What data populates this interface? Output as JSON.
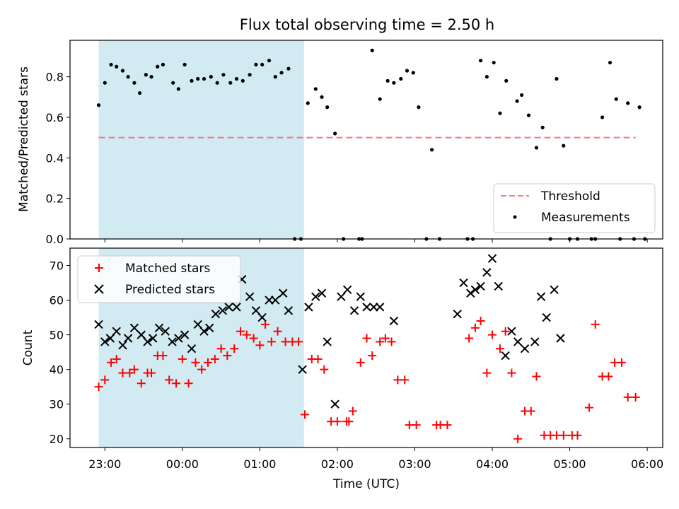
{
  "chart_data": {
    "title": "Flux total observing time = 2.50 h",
    "xlabel": "Time (UTC)",
    "x_ticks": [
      "23:00",
      "00:00",
      "01:00",
      "02:00",
      "03:00",
      "04:00",
      "05:00",
      "06:00"
    ],
    "x_range_hours": [
      22.55,
      30.2
    ],
    "shaded_interval_hours": [
      22.92,
      25.57
    ],
    "shade_color": "#add8e6",
    "panels": [
      {
        "type": "scatter",
        "ylabel": "Matched/Predicted stars",
        "ylim": [
          0,
          0.98
        ],
        "y_ticks": [
          0.0,
          0.2,
          0.4,
          0.6,
          0.8
        ],
        "y_tick_labels": [
          "0.0",
          "0.2",
          "0.4",
          "0.6",
          "0.8"
        ],
        "legend": {
          "position": "lower right",
          "entries": [
            "Threshold",
            "Measurements"
          ]
        },
        "threshold": {
          "name": "Threshold",
          "value": 0.5,
          "x_range": [
            22.92,
            29.85
          ],
          "color": "#f08080"
        },
        "series": [
          {
            "name": "Measurements",
            "marker": "dot",
            "color": "#000000",
            "points": [
              [
                22.92,
                0.66
              ],
              [
                23.0,
                0.77
              ],
              [
                23.08,
                0.86
              ],
              [
                23.15,
                0.85
              ],
              [
                23.23,
                0.83
              ],
              [
                23.3,
                0.8
              ],
              [
                23.38,
                0.77
              ],
              [
                23.45,
                0.72
              ],
              [
                23.53,
                0.81
              ],
              [
                23.6,
                0.8
              ],
              [
                23.68,
                0.85
              ],
              [
                23.75,
                0.86
              ],
              [
                23.88,
                0.77
              ],
              [
                23.95,
                0.74
              ],
              [
                24.03,
                0.86
              ],
              [
                24.12,
                0.78
              ],
              [
                24.2,
                0.79
              ],
              [
                24.28,
                0.79
              ],
              [
                24.37,
                0.8
              ],
              [
                24.45,
                0.77
              ],
              [
                24.53,
                0.81
              ],
              [
                24.62,
                0.77
              ],
              [
                24.7,
                0.79
              ],
              [
                24.78,
                0.78
              ],
              [
                24.87,
                0.81
              ],
              [
                24.95,
                0.86
              ],
              [
                25.03,
                0.86
              ],
              [
                25.12,
                0.88
              ],
              [
                25.2,
                0.8
              ],
              [
                25.28,
                0.82
              ],
              [
                25.37,
                0.84
              ],
              [
                25.45,
                0.0
              ],
              [
                25.53,
                0.0
              ],
              [
                25.62,
                0.67
              ],
              [
                25.72,
                0.74
              ],
              [
                25.8,
                0.7
              ],
              [
                25.87,
                0.65
              ],
              [
                25.97,
                0.52
              ],
              [
                26.08,
                0.0
              ],
              [
                26.28,
                0.0
              ],
              [
                26.32,
                0.0
              ],
              [
                26.45,
                0.93
              ],
              [
                26.55,
                0.69
              ],
              [
                26.65,
                0.78
              ],
              [
                26.73,
                0.77
              ],
              [
                26.82,
                0.79
              ],
              [
                26.9,
                0.83
              ],
              [
                26.98,
                0.82
              ],
              [
                27.05,
                0.65
              ],
              [
                27.15,
                0.0
              ],
              [
                27.22,
                0.44
              ],
              [
                27.32,
                0.0
              ],
              [
                27.68,
                0.0
              ],
              [
                27.75,
                0.0
              ],
              [
                27.85,
                0.88
              ],
              [
                27.93,
                0.8
              ],
              [
                28.02,
                0.87
              ],
              [
                28.1,
                0.62
              ],
              [
                28.18,
                0.78
              ],
              [
                28.32,
                0.68
              ],
              [
                28.38,
                0.71
              ],
              [
                28.47,
                0.61
              ],
              [
                28.57,
                0.45
              ],
              [
                28.65,
                0.55
              ],
              [
                28.75,
                0.0
              ],
              [
                28.83,
                0.79
              ],
              [
                28.92,
                0.46
              ],
              [
                29.0,
                0.0
              ],
              [
                29.1,
                0.0
              ],
              [
                29.28,
                0.0
              ],
              [
                29.33,
                0.0
              ],
              [
                29.42,
                0.6
              ],
              [
                29.52,
                0.87
              ],
              [
                29.6,
                0.69
              ],
              [
                29.65,
                0.0
              ],
              [
                29.75,
                0.67
              ],
              [
                29.83,
                0.0
              ],
              [
                29.9,
                0.65
              ],
              [
                29.97,
                0.0
              ]
            ]
          }
        ]
      },
      {
        "type": "scatter",
        "ylabel": "Count",
        "ylim": [
          17.5,
          75
        ],
        "y_ticks": [
          20,
          30,
          40,
          50,
          60,
          70
        ],
        "y_tick_labels": [
          "20",
          "30",
          "40",
          "50",
          "60",
          "70"
        ],
        "legend": {
          "position": "upper left",
          "entries": [
            "Matched stars",
            "Predicted stars"
          ]
        },
        "series": [
          {
            "name": "Matched stars",
            "marker": "plus",
            "color": "#ff0000",
            "points": [
              [
                22.92,
                35
              ],
              [
                23.0,
                37
              ],
              [
                23.08,
                42
              ],
              [
                23.15,
                43
              ],
              [
                23.23,
                39
              ],
              [
                23.32,
                39
              ],
              [
                23.38,
                40
              ],
              [
                23.47,
                36
              ],
              [
                23.55,
                39
              ],
              [
                23.6,
                39
              ],
              [
                23.68,
                44
              ],
              [
                23.75,
                44
              ],
              [
                23.83,
                37
              ],
              [
                23.92,
                36
              ],
              [
                24.0,
                43
              ],
              [
                24.08,
                36
              ],
              [
                24.17,
                42
              ],
              [
                24.25,
                40
              ],
              [
                24.33,
                42
              ],
              [
                24.42,
                43
              ],
              [
                24.5,
                46
              ],
              [
                24.58,
                44
              ],
              [
                24.67,
                46
              ],
              [
                24.75,
                51
              ],
              [
                24.83,
                50
              ],
              [
                24.92,
                49
              ],
              [
                25.0,
                47
              ],
              [
                25.07,
                53
              ],
              [
                25.15,
                48
              ],
              [
                25.23,
                51
              ],
              [
                25.33,
                48
              ],
              [
                25.42,
                48
              ],
              [
                25.5,
                48
              ],
              [
                25.58,
                27
              ],
              [
                25.67,
                43
              ],
              [
                25.75,
                43
              ],
              [
                25.83,
                40
              ],
              [
                25.92,
                25
              ],
              [
                26.0,
                25
              ],
              [
                26.12,
                25
              ],
              [
                26.15,
                25
              ],
              [
                26.2,
                28
              ],
              [
                26.3,
                42
              ],
              [
                26.38,
                49
              ],
              [
                26.45,
                44
              ],
              [
                26.55,
                48
              ],
              [
                26.62,
                49
              ],
              [
                26.7,
                48
              ],
              [
                26.78,
                37
              ],
              [
                26.87,
                37
              ],
              [
                26.93,
                24
              ],
              [
                27.02,
                24
              ],
              [
                27.28,
                24
              ],
              [
                27.33,
                24
              ],
              [
                27.42,
                24
              ],
              [
                27.7,
                49
              ],
              [
                27.78,
                52
              ],
              [
                27.85,
                54
              ],
              [
                27.93,
                39
              ],
              [
                28.0,
                50
              ],
              [
                28.1,
                46
              ],
              [
                28.17,
                51
              ],
              [
                28.25,
                39
              ],
              [
                28.33,
                20
              ],
              [
                28.42,
                28
              ],
              [
                28.5,
                28
              ],
              [
                28.57,
                38
              ],
              [
                28.67,
                21
              ],
              [
                28.75,
                21
              ],
              [
                28.83,
                21
              ],
              [
                28.92,
                21
              ],
              [
                29.03,
                21
              ],
              [
                29.1,
                21
              ],
              [
                29.25,
                29
              ],
              [
                29.33,
                53
              ],
              [
                29.42,
                38
              ],
              [
                29.5,
                38
              ],
              [
                29.58,
                42
              ],
              [
                29.67,
                42
              ],
              [
                29.75,
                32
              ],
              [
                29.85,
                32
              ]
            ]
          },
          {
            "name": "Predicted stars",
            "marker": "x",
            "color": "#000000",
            "points": [
              [
                22.92,
                53
              ],
              [
                23.0,
                48
              ],
              [
                23.07,
                49
              ],
              [
                23.15,
                51
              ],
              [
                23.23,
                47
              ],
              [
                23.3,
                49
              ],
              [
                23.38,
                52
              ],
              [
                23.47,
                50
              ],
              [
                23.55,
                48
              ],
              [
                23.62,
                49
              ],
              [
                23.7,
                52
              ],
              [
                23.78,
                51
              ],
              [
                23.87,
                48
              ],
              [
                23.95,
                49
              ],
              [
                24.03,
                50
              ],
              [
                24.12,
                46
              ],
              [
                24.2,
                53
              ],
              [
                24.28,
                51
              ],
              [
                24.35,
                52
              ],
              [
                24.43,
                56
              ],
              [
                24.52,
                57
              ],
              [
                24.6,
                58
              ],
              [
                24.7,
                58
              ],
              [
                24.77,
                66
              ],
              [
                24.87,
                61
              ],
              [
                24.95,
                57
              ],
              [
                25.03,
                55
              ],
              [
                25.12,
                60
              ],
              [
                25.2,
                60
              ],
              [
                25.3,
                62
              ],
              [
                25.37,
                57
              ],
              [
                25.55,
                40
              ],
              [
                25.63,
                58
              ],
              [
                25.72,
                61
              ],
              [
                25.8,
                62
              ],
              [
                25.87,
                48
              ],
              [
                25.97,
                30
              ],
              [
                26.05,
                61
              ],
              [
                26.13,
                63
              ],
              [
                26.22,
                57
              ],
              [
                26.3,
                61
              ],
              [
                26.38,
                58
              ],
              [
                26.47,
                58
              ],
              [
                26.55,
                58
              ],
              [
                26.73,
                54
              ],
              [
                27.55,
                56
              ],
              [
                27.63,
                65
              ],
              [
                27.72,
                62
              ],
              [
                27.78,
                63
              ],
              [
                27.85,
                64
              ],
              [
                27.93,
                68
              ],
              [
                28.0,
                72
              ],
              [
                28.08,
                64
              ],
              [
                28.17,
                44
              ],
              [
                28.25,
                51
              ],
              [
                28.33,
                48
              ],
              [
                28.42,
                46
              ],
              [
                28.55,
                48
              ],
              [
                28.63,
                61
              ],
              [
                28.7,
                55
              ],
              [
                28.8,
                63
              ],
              [
                28.88,
                49
              ]
            ]
          }
        ]
      }
    ]
  }
}
